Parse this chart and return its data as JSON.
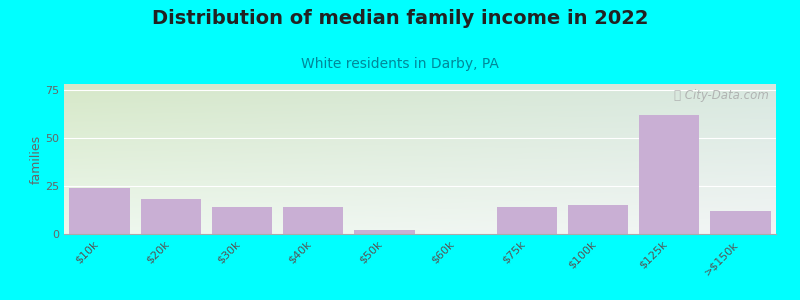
{
  "title": "Distribution of median family income in 2022",
  "subtitle": "White residents in Darby, PA",
  "ylabel": "families",
  "categories": [
    "$10k",
    "$20k",
    "$30k",
    "$40k",
    "$50k",
    "$60k",
    "$75k",
    "$100k",
    "$125k",
    ">$150k"
  ],
  "values": [
    24,
    18,
    14,
    14,
    2,
    0,
    14,
    15,
    62,
    12
  ],
  "bar_color": "#c9afd4",
  "background_color": "#00FFFF",
  "plot_bg_topleft": "#d6e8c8",
  "plot_bg_bottomright": "#f0f8f0",
  "plot_bg_right": "#e8eff0",
  "ylim": [
    0,
    78
  ],
  "yticks": [
    0,
    25,
    50,
    75
  ],
  "title_fontsize": 14,
  "subtitle_fontsize": 10,
  "ylabel_fontsize": 9,
  "tick_fontsize": 8,
  "watermark": "ⓘ City-Data.com"
}
